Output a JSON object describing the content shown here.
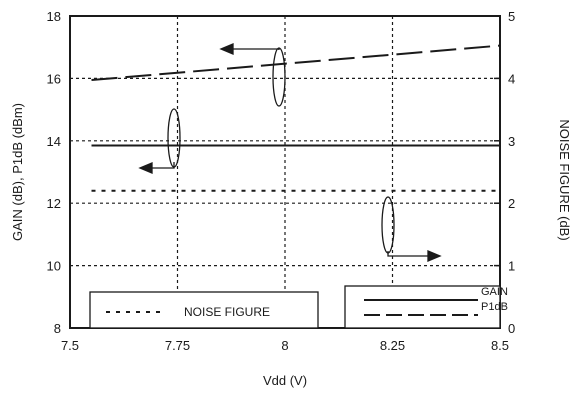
{
  "chart_data": {
    "type": "line",
    "xlabel": "Vdd (V)",
    "ylabel_left": "GAIN (dB), P1dB (dBm)",
    "ylabel_right": "NOISE FIGURE (dB)",
    "xlim": [
      7.5,
      8.5
    ],
    "ylim_left": [
      8,
      18
    ],
    "ylim_right": [
      0,
      5
    ],
    "x_ticks": [
      "7.5",
      "7.75",
      "8",
      "8.25",
      "8.5"
    ],
    "y_left_ticks": [
      "8",
      "10",
      "12",
      "14",
      "16",
      "18"
    ],
    "y_right_ticks": [
      "0",
      "1",
      "2",
      "3",
      "4",
      "5"
    ],
    "grid": true,
    "series": [
      {
        "name": "GAIN",
        "axis": "left",
        "style": "solid",
        "x": [
          7.55,
          8.5
        ],
        "y": [
          13.85,
          13.85
        ]
      },
      {
        "name": "P1dB",
        "axis": "left",
        "style": "longdash",
        "x": [
          7.55,
          8.5
        ],
        "y": [
          15.95,
          17.05
        ]
      },
      {
        "name": "NOISE FIGURE",
        "axis": "right",
        "style": "dotted",
        "x": [
          7.55,
          8.5
        ],
        "y": [
          2.2,
          2.2
        ]
      }
    ],
    "legend_left": {
      "entries": [
        "NOISE FIGURE"
      ]
    },
    "legend_right": {
      "entries": [
        "GAIN",
        "P1dB"
      ]
    }
  }
}
